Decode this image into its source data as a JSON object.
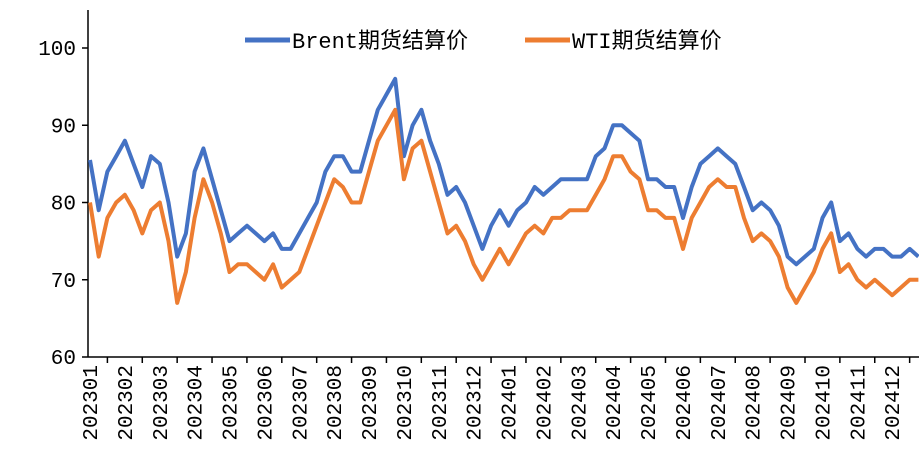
{
  "chart_data": {
    "type": "line",
    "categories": [
      "202301",
      null,
      null,
      null,
      "202302",
      null,
      null,
      null,
      "202303",
      null,
      null,
      null,
      "202304",
      null,
      null,
      null,
      "202305",
      null,
      null,
      null,
      "202306",
      null,
      null,
      null,
      "202307",
      null,
      null,
      null,
      "202308",
      null,
      null,
      null,
      "202309",
      null,
      null,
      null,
      "202310",
      null,
      null,
      null,
      "202311",
      null,
      null,
      null,
      "202312",
      null,
      null,
      null,
      "202401",
      null,
      null,
      null,
      "202402",
      null,
      null,
      null,
      "202403",
      null,
      null,
      null,
      "202404",
      null,
      null,
      null,
      "202405",
      null,
      null,
      null,
      "202406",
      null,
      null,
      null,
      "202407",
      null,
      null,
      null,
      "202408",
      null,
      null,
      null,
      "202409",
      null,
      null,
      null,
      "202410",
      null,
      null,
      null,
      "202411",
      null,
      null,
      null,
      "202412",
      null,
      null,
      null
    ],
    "series": [
      {
        "name": "Brent期货结算价",
        "color": "#4472c4",
        "values": [
          85.5,
          79,
          84,
          86,
          88,
          85,
          82,
          86,
          85,
          80,
          73,
          76,
          84,
          87,
          83,
          79,
          75,
          76,
          77,
          76,
          75,
          76,
          74,
          74,
          76,
          78,
          80,
          84,
          86,
          86,
          84,
          84,
          88,
          92,
          94,
          96,
          86,
          90,
          92,
          88,
          85,
          81,
          82,
          80,
          77,
          74,
          77,
          79,
          77,
          79,
          80,
          82,
          81,
          82,
          83,
          83,
          83,
          83,
          86,
          87,
          90,
          90,
          89,
          88,
          83,
          83,
          82,
          82,
          78,
          82,
          85,
          86,
          87,
          86,
          85,
          82,
          79,
          80,
          79,
          77,
          73,
          72,
          73,
          74,
          78,
          80,
          75,
          76,
          74,
          73,
          74,
          74,
          73,
          73,
          74,
          73
        ]
      },
      {
        "name": "WTI期货结算价",
        "color": "#ed7d31",
        "values": [
          80,
          73,
          78,
          80,
          81,
          79,
          76,
          79,
          80,
          75,
          67,
          71,
          78,
          83,
          80,
          76,
          71,
          72,
          72,
          71,
          70,
          72,
          69,
          70,
          71,
          74,
          77,
          80,
          83,
          82,
          80,
          80,
          84,
          88,
          90,
          92,
          83,
          87,
          88,
          84,
          80,
          76,
          77,
          75,
          72,
          70,
          72,
          74,
          72,
          74,
          76,
          77,
          76,
          78,
          78,
          79,
          79,
          79,
          81,
          83,
          86,
          86,
          84,
          83,
          79,
          79,
          78,
          78,
          74,
          78,
          80,
          82,
          83,
          82,
          82,
          78,
          75,
          76,
          75,
          73,
          69,
          67,
          69,
          71,
          74,
          76,
          71,
          72,
          70,
          69,
          70,
          69,
          68,
          69,
          70,
          70
        ]
      }
    ],
    "ylim": [
      60,
      100
    ],
    "yticks": [
      60,
      70,
      80,
      90,
      100
    ]
  }
}
